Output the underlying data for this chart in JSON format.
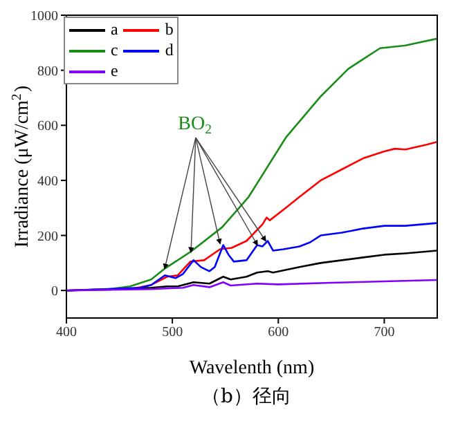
{
  "chart_data": {
    "type": "line",
    "xlabel": "Wavelenth (nm)",
    "ylabel": "Irradiance (μW/cm$^{2}$)",
    "xlim": [
      400,
      750
    ],
    "xticks": [
      400,
      500,
      600,
      700
    ],
    "ylim": [
      -100,
      1000
    ],
    "yticks": [
      0,
      200,
      400,
      600,
      800,
      1000
    ],
    "legend": "top left",
    "grid": false,
    "marker": "none",
    "line_style": "solid",
    "annotations": [
      {
        "text": "BO$_{2}$",
        "x": 545,
        "y": 170
      },
      "（b）径向"
    ],
    "series": [
      {
        "name": "a",
        "color": "#000000",
        "x": [
          400,
          480,
          495,
          505,
          520,
          535,
          548,
          555,
          570,
          580,
          590,
          595,
          620,
          640,
          660,
          680,
          700,
          720,
          750
        ],
        "values": [
          0,
          10,
          15,
          15,
          30,
          25,
          50,
          40,
          50,
          65,
          70,
          65,
          85,
          100,
          110,
          120,
          130,
          135,
          145
        ]
      },
      {
        "name": "b",
        "color": "#ff0000",
        "x": [
          400,
          460,
          480,
          495,
          505,
          517,
          530,
          545,
          556,
          570,
          585,
          589,
          592,
          607,
          620,
          640,
          660,
          680,
          700,
          710,
          720,
          740,
          750
        ],
        "values": [
          0,
          5,
          20,
          50,
          55,
          105,
          110,
          150,
          155,
          180,
          240,
          265,
          255,
          300,
          340,
          400,
          440,
          480,
          505,
          515,
          512,
          530,
          540
        ]
      },
      {
        "name": "c",
        "color": "#1a8c1a",
        "x": [
          400,
          440,
          460,
          480,
          493,
          517,
          547,
          572,
          607,
          640,
          666,
          680,
          696,
          720,
          750
        ],
        "values": [
          0,
          5,
          15,
          40,
          80,
          140,
          230,
          340,
          555,
          705,
          805,
          840,
          880,
          890,
          915
        ]
      },
      {
        "name": "d",
        "color": "#0000ff",
        "x": [
          400,
          470,
          480,
          493,
          503,
          510,
          520,
          527,
          535,
          540,
          548,
          553,
          558,
          570,
          580,
          585,
          590,
          595,
          605,
          620,
          630,
          640,
          660,
          680,
          700,
          720,
          750
        ],
        "values": [
          0,
          10,
          20,
          55,
          45,
          60,
          110,
          85,
          70,
          85,
          165,
          130,
          105,
          110,
          165,
          160,
          180,
          145,
          150,
          160,
          175,
          200,
          210,
          225,
          235,
          235,
          245
        ]
      },
      {
        "name": "e",
        "color": "#8000ff",
        "x": [
          400,
          480,
          510,
          520,
          535,
          548,
          555,
          580,
          600,
          650,
          700,
          750
        ],
        "values": [
          0,
          5,
          10,
          20,
          12,
          30,
          18,
          25,
          22,
          28,
          33,
          38
        ]
      }
    ]
  }
}
